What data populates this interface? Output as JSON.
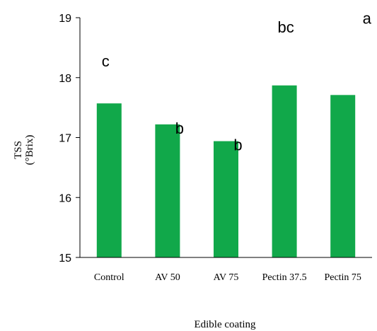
{
  "chart_data": {
    "type": "bar",
    "title": "",
    "xlabel": "Edible coating",
    "ylabel_line1": "TSS",
    "ylabel_line2": "(°Brix)",
    "categories": [
      "Control",
      "AV 50",
      "AV 75",
      "Pectin 37.5",
      "Pectin 75"
    ],
    "values": [
      17.57,
      17.22,
      16.94,
      17.87,
      17.71
    ],
    "letters": [
      "c",
      "b",
      "b",
      "bc",
      "a"
    ],
    "ylim": [
      15,
      19
    ],
    "yticks": [
      15,
      16,
      17,
      18,
      19
    ],
    "grid": false,
    "legend": "none",
    "bar_color": "#11A84A"
  }
}
